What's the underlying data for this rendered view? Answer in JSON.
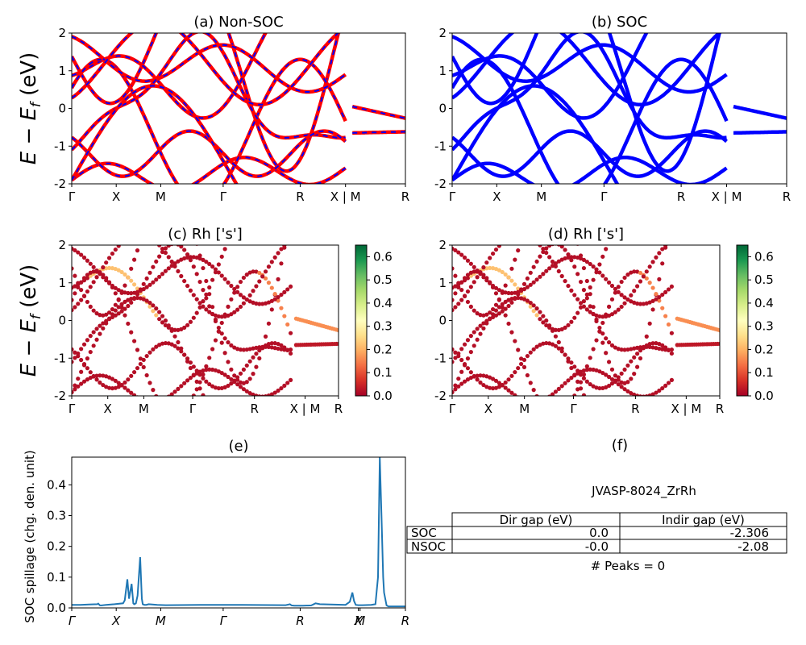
{
  "ylabel_band": "E − E",
  "ylabel_band_sub": "f",
  "ylabel_band_unit": " (eV)",
  "colors": {
    "nonsoc_band": "#ff0000",
    "nonsoc_dash": "#0000ff",
    "soc_band": "#0000ff",
    "spillage_line": "#1f77b4",
    "cmap": [
      "#a50026",
      "#d73027",
      "#f46d43",
      "#fdae61",
      "#fee08b",
      "#ffffbf",
      "#d9ef8b",
      "#a6d96a",
      "#66bd63",
      "#1a9850",
      "#006837"
    ]
  },
  "chart_data": [
    {
      "id": "a",
      "type": "line",
      "title": "(a) Non-SOC",
      "ylim": [
        -2,
        2
      ],
      "yticks": [
        "-2",
        "-1",
        "0",
        "1",
        "2"
      ],
      "xticks": [
        "Γ",
        "X",
        "M",
        "Γ",
        "R",
        "X | M",
        "R"
      ],
      "xtick_pos": [
        0,
        0.52,
        1.04,
        1.77,
        2.67,
        3.2,
        3.9
      ],
      "xlim": [
        0,
        3.9
      ]
    },
    {
      "id": "b",
      "type": "line",
      "title": "(b) SOC",
      "ylim": [
        -2,
        2
      ],
      "yticks": [
        "-2",
        "-1",
        "0",
        "1",
        "2"
      ],
      "xticks": [
        "Γ",
        "X",
        "M",
        "Γ",
        "R",
        "X | M",
        "R"
      ],
      "xtick_pos": [
        0,
        0.52,
        1.04,
        1.77,
        2.67,
        3.2,
        3.9
      ],
      "xlim": [
        0,
        3.9
      ]
    },
    {
      "id": "c",
      "type": "scatter",
      "title": "(c)  Rh ['s']",
      "ylim": [
        -2,
        2
      ],
      "yticks": [
        "-2",
        "-1",
        "0",
        "1",
        "2"
      ],
      "xticks": [
        "Γ",
        "X",
        "M",
        "Γ",
        "R",
        "X | M",
        "R"
      ],
      "xtick_pos": [
        0,
        0.42,
        0.84,
        1.41,
        2.13,
        2.72,
        3.11
      ],
      "xlim": [
        0,
        3.11
      ],
      "colorbar": {
        "range": [
          0,
          0.65
        ],
        "ticks": [
          "0.0",
          "0.1",
          "0.2",
          "0.3",
          "0.4",
          "0.5",
          "0.6"
        ]
      }
    },
    {
      "id": "d",
      "type": "scatter",
      "title": "(d) Rh ['s']",
      "ylim": [
        -2,
        2
      ],
      "yticks": [
        "-2",
        "-1",
        "0",
        "1",
        "2"
      ],
      "xticks": [
        "Γ",
        "X",
        "M",
        "Γ",
        "R",
        "X | M",
        "R"
      ],
      "xtick_pos": [
        0,
        0.42,
        0.84,
        1.41,
        2.13,
        2.72,
        3.11
      ],
      "xlim": [
        0,
        3.11
      ],
      "colorbar": {
        "range": [
          0,
          0.65
        ],
        "ticks": [
          "0.0",
          "0.1",
          "0.2",
          "0.3",
          "0.4",
          "0.5",
          "0.6"
        ]
      }
    },
    {
      "id": "e",
      "type": "line",
      "title": "(e)",
      "ylabel": "SOC spillage (chg. den. unit)",
      "ylim": [
        0,
        0.49
      ],
      "yticks": [
        "0.0",
        "0.1",
        "0.2",
        "0.3",
        "0.4"
      ],
      "xticks": [
        "Γ",
        "X",
        "M",
        "Γ",
        "R",
        "X",
        "M",
        "R"
      ],
      "xtick_pos": [
        0,
        0.52,
        1.04,
        1.77,
        2.67,
        3.35,
        3.37,
        3.9
      ],
      "xlim": [
        0,
        3.9
      ],
      "x": [
        0,
        0.1,
        0.2,
        0.3,
        0.31,
        0.33,
        0.35,
        0.4,
        0.5,
        0.6,
        0.62,
        0.65,
        0.67,
        0.7,
        0.72,
        0.73,
        0.75,
        0.77,
        0.8,
        0.82,
        0.83,
        0.85,
        0.87,
        0.9,
        1.0,
        1.1,
        1.5,
        2.0,
        2.5,
        2.55,
        2.57,
        2.6,
        2.7,
        2.8,
        2.85,
        2.9,
        3.2,
        3.25,
        3.28,
        3.3,
        3.32,
        3.35,
        3.4,
        3.5,
        3.55,
        3.58,
        3.6,
        3.62,
        3.64,
        3.65,
        3.68,
        3.7,
        3.75,
        3.8,
        3.9
      ],
      "values": [
        0.01,
        0.01,
        0.011,
        0.012,
        0.014,
        0.008,
        0.008,
        0.01,
        0.012,
        0.015,
        0.025,
        0.093,
        0.03,
        0.078,
        0.015,
        0.012,
        0.015,
        0.04,
        0.165,
        0.03,
        0.012,
        0.01,
        0.01,
        0.012,
        0.01,
        0.009,
        0.01,
        0.01,
        0.009,
        0.012,
        0.008,
        0.007,
        0.007,
        0.008,
        0.015,
        0.012,
        0.01,
        0.02,
        0.05,
        0.022,
        0.01,
        0.009,
        0.009,
        0.01,
        0.012,
        0.1,
        0.49,
        0.3,
        0.1,
        0.05,
        0.008,
        0.005,
        0.005,
        0.005,
        0.005
      ]
    }
  ],
  "panel_f": {
    "title": "(f)",
    "material": "JVASP-8024_ZrRh",
    "table": {
      "headers": [
        "Dir gap (eV)",
        "Indir gap (eV)"
      ],
      "rows": [
        {
          "label": "SOC",
          "dir": "0.0",
          "indir": "-2.306"
        },
        {
          "label": "NSOC",
          "dir": "-0.0",
          "indir": "-2.08"
        }
      ]
    },
    "peaks": "# Peaks = 0"
  }
}
